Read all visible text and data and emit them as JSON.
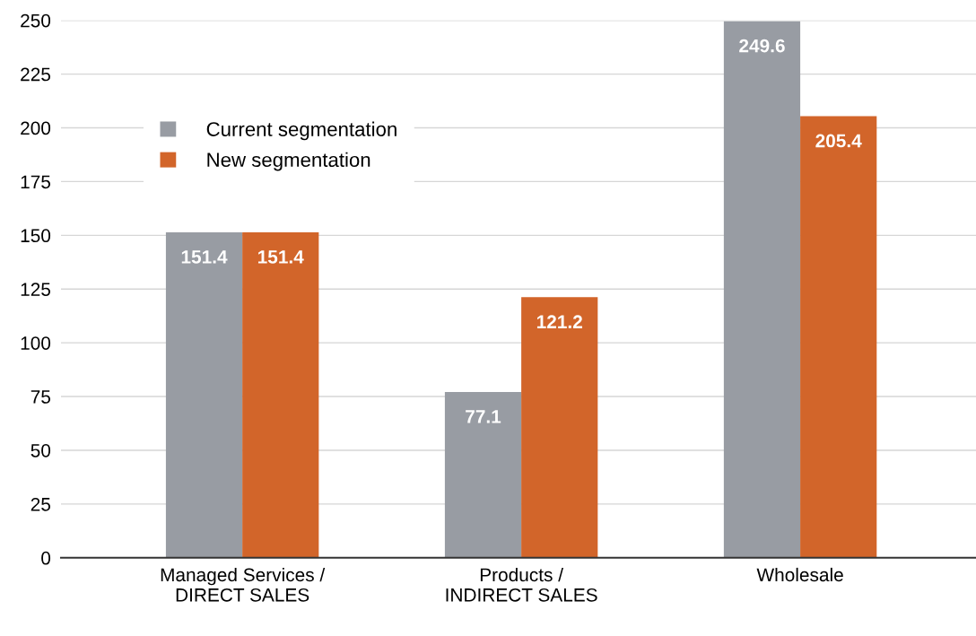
{
  "chart_data": {
    "type": "bar",
    "categories": [
      "Managed Services /\nDIRECT SALES",
      "Products /\nINDIRECT SALES",
      "Wholesale"
    ],
    "series": [
      {
        "name": "Current segmentation",
        "color": "#989ca3",
        "values": [
          151.4,
          77.1,
          249.6
        ]
      },
      {
        "name": "New segmentation",
        "color": "#d2652a",
        "values": [
          151.4,
          121.2,
          205.4
        ]
      }
    ],
    "ylim": [
      0,
      250
    ],
    "yticks": [
      0,
      25,
      50,
      75,
      100,
      125,
      150,
      175,
      200,
      225,
      250
    ],
    "grid": "y",
    "legend": "top left",
    "data_labels": true
  }
}
